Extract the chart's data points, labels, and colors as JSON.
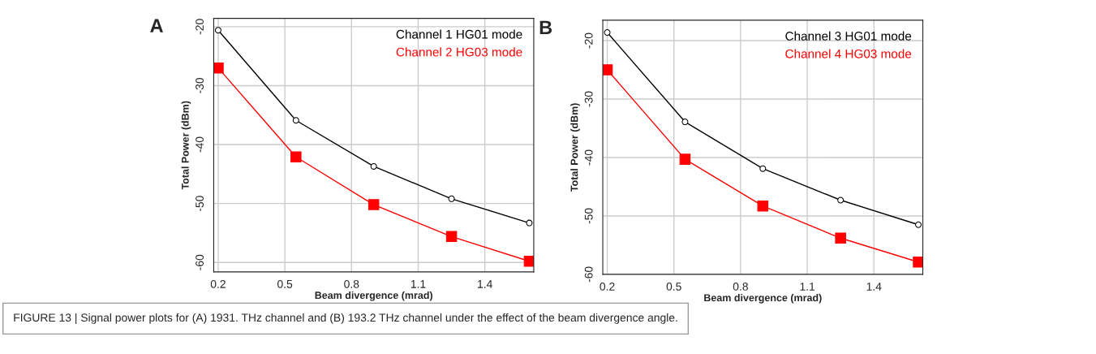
{
  "chart_data": [
    {
      "type": "line",
      "title": "A",
      "xlabel": "Beam divergence (mrad)",
      "ylabel": "Total Power (dBm)",
      "x": [
        0.2,
        0.55,
        0.9,
        1.25,
        1.6
      ],
      "xlim": [
        0.18,
        1.62
      ],
      "xticks": [
        0.2,
        0.5,
        0.8,
        1.1,
        1.4
      ],
      "ylim": [
        -61.6,
        -18.6
      ],
      "yticks": [
        -20,
        -30,
        -40,
        -50,
        -60
      ],
      "grid": true,
      "legend": "top right",
      "series": [
        {
          "name": "Channel 1 HG01 mode",
          "color": "#000000",
          "marker": "circle",
          "values": [
            -20.6,
            -35.9,
            -43.7,
            -49.2,
            -53.3
          ]
        },
        {
          "name": "Channel 2 HG03 mode",
          "color": "#ff0000",
          "marker": "square",
          "values": [
            -27.0,
            -42.1,
            -50.2,
            -55.6,
            -59.8
          ]
        }
      ],
      "annotations": [
        "FIGURE 13 | Signal power plots for (A) 1931. THz channel and (B) 193.2 THz channel under the effect of the beam divergence angle."
      ]
    },
    {
      "type": "line",
      "title": "B",
      "xlabel": "Beam divergence (mrad)",
      "ylabel": "Total Power (dBm)",
      "x": [
        0.2,
        0.55,
        0.9,
        1.25,
        1.6
      ],
      "xlim": [
        0.18,
        1.62
      ],
      "xticks": [
        0.2,
        0.5,
        0.8,
        1.1,
        1.4
      ],
      "ylim": [
        -60,
        -16.5
      ],
      "yticks": [
        -20,
        -30,
        -40,
        -50,
        -60
      ],
      "grid": true,
      "legend": "top right",
      "series": [
        {
          "name": "Channel 3 HG01 mode",
          "color": "#000000",
          "marker": "circle",
          "values": [
            -18.6,
            -33.9,
            -41.9,
            -47.3,
            -51.5
          ]
        },
        {
          "name": "Channel 4 HG03 mode",
          "color": "#ff0000",
          "marker": "square",
          "values": [
            -25.0,
            -40.3,
            -48.3,
            -53.8,
            -57.9
          ]
        }
      ]
    }
  ]
}
